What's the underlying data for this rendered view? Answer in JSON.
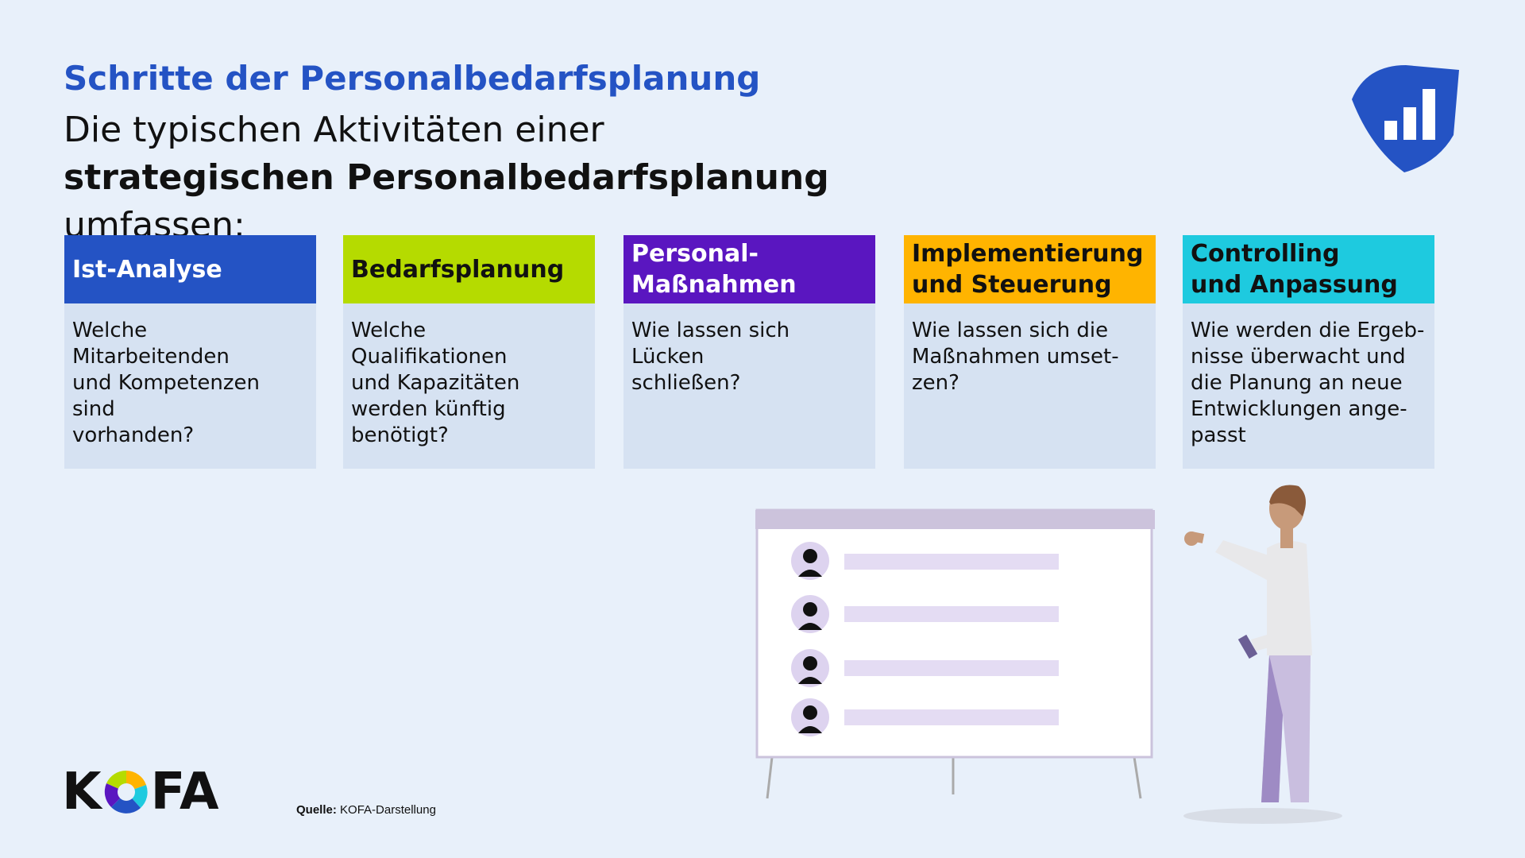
{
  "header": {
    "title": "Schritte der Personalbedarfsplanung",
    "subtitle": {
      "intro": "Die typischen Aktivitäten einer ",
      "emphasis": "strategischen Personalbedarfsplanung",
      "outro": " umfassen:"
    }
  },
  "steps": [
    {
      "title": [
        "Ist-Analyse"
      ],
      "color": "#2453c4",
      "text_color": "#ffffff",
      "question": [
        "Welche Mitarbeitenden",
        "und Kompetenzen sind",
        "vorhanden?"
      ]
    },
    {
      "title": [
        "Bedarfsplanung"
      ],
      "color": "#b5db00",
      "text_color": "#111111",
      "question": [
        "Welche Qualifikationen",
        "und Kapazitäten",
        "werden künftig",
        "benötigt?"
      ]
    },
    {
      "title": [
        "Personal-",
        "Maßnahmen"
      ],
      "color": "#5a16c0",
      "text_color": "#ffffff",
      "question": [
        "Wie lassen sich Lücken",
        "schließen?"
      ]
    },
    {
      "title": [
        "Implementierung",
        "und Steuerung"
      ],
      "color": "#ffb400",
      "text_color": "#111111",
      "question": [
        "Wie lassen sich die",
        "Maßnahmen umset-",
        "zen?"
      ]
    },
    {
      "title": [
        "Controlling",
        "und Anpassung"
      ],
      "color": "#1ecadf",
      "text_color": "#111111",
      "question": [
        "Wie werden die Ergeb-",
        "nisse überwacht und",
        "die Planung an neue",
        "Entwicklungen ange-",
        "passt"
      ]
    }
  ],
  "logo": {
    "prefix": "K",
    "suffix": "FA"
  },
  "source": {
    "label": "Quelle:",
    "text": "KOFA-Darstellung"
  }
}
